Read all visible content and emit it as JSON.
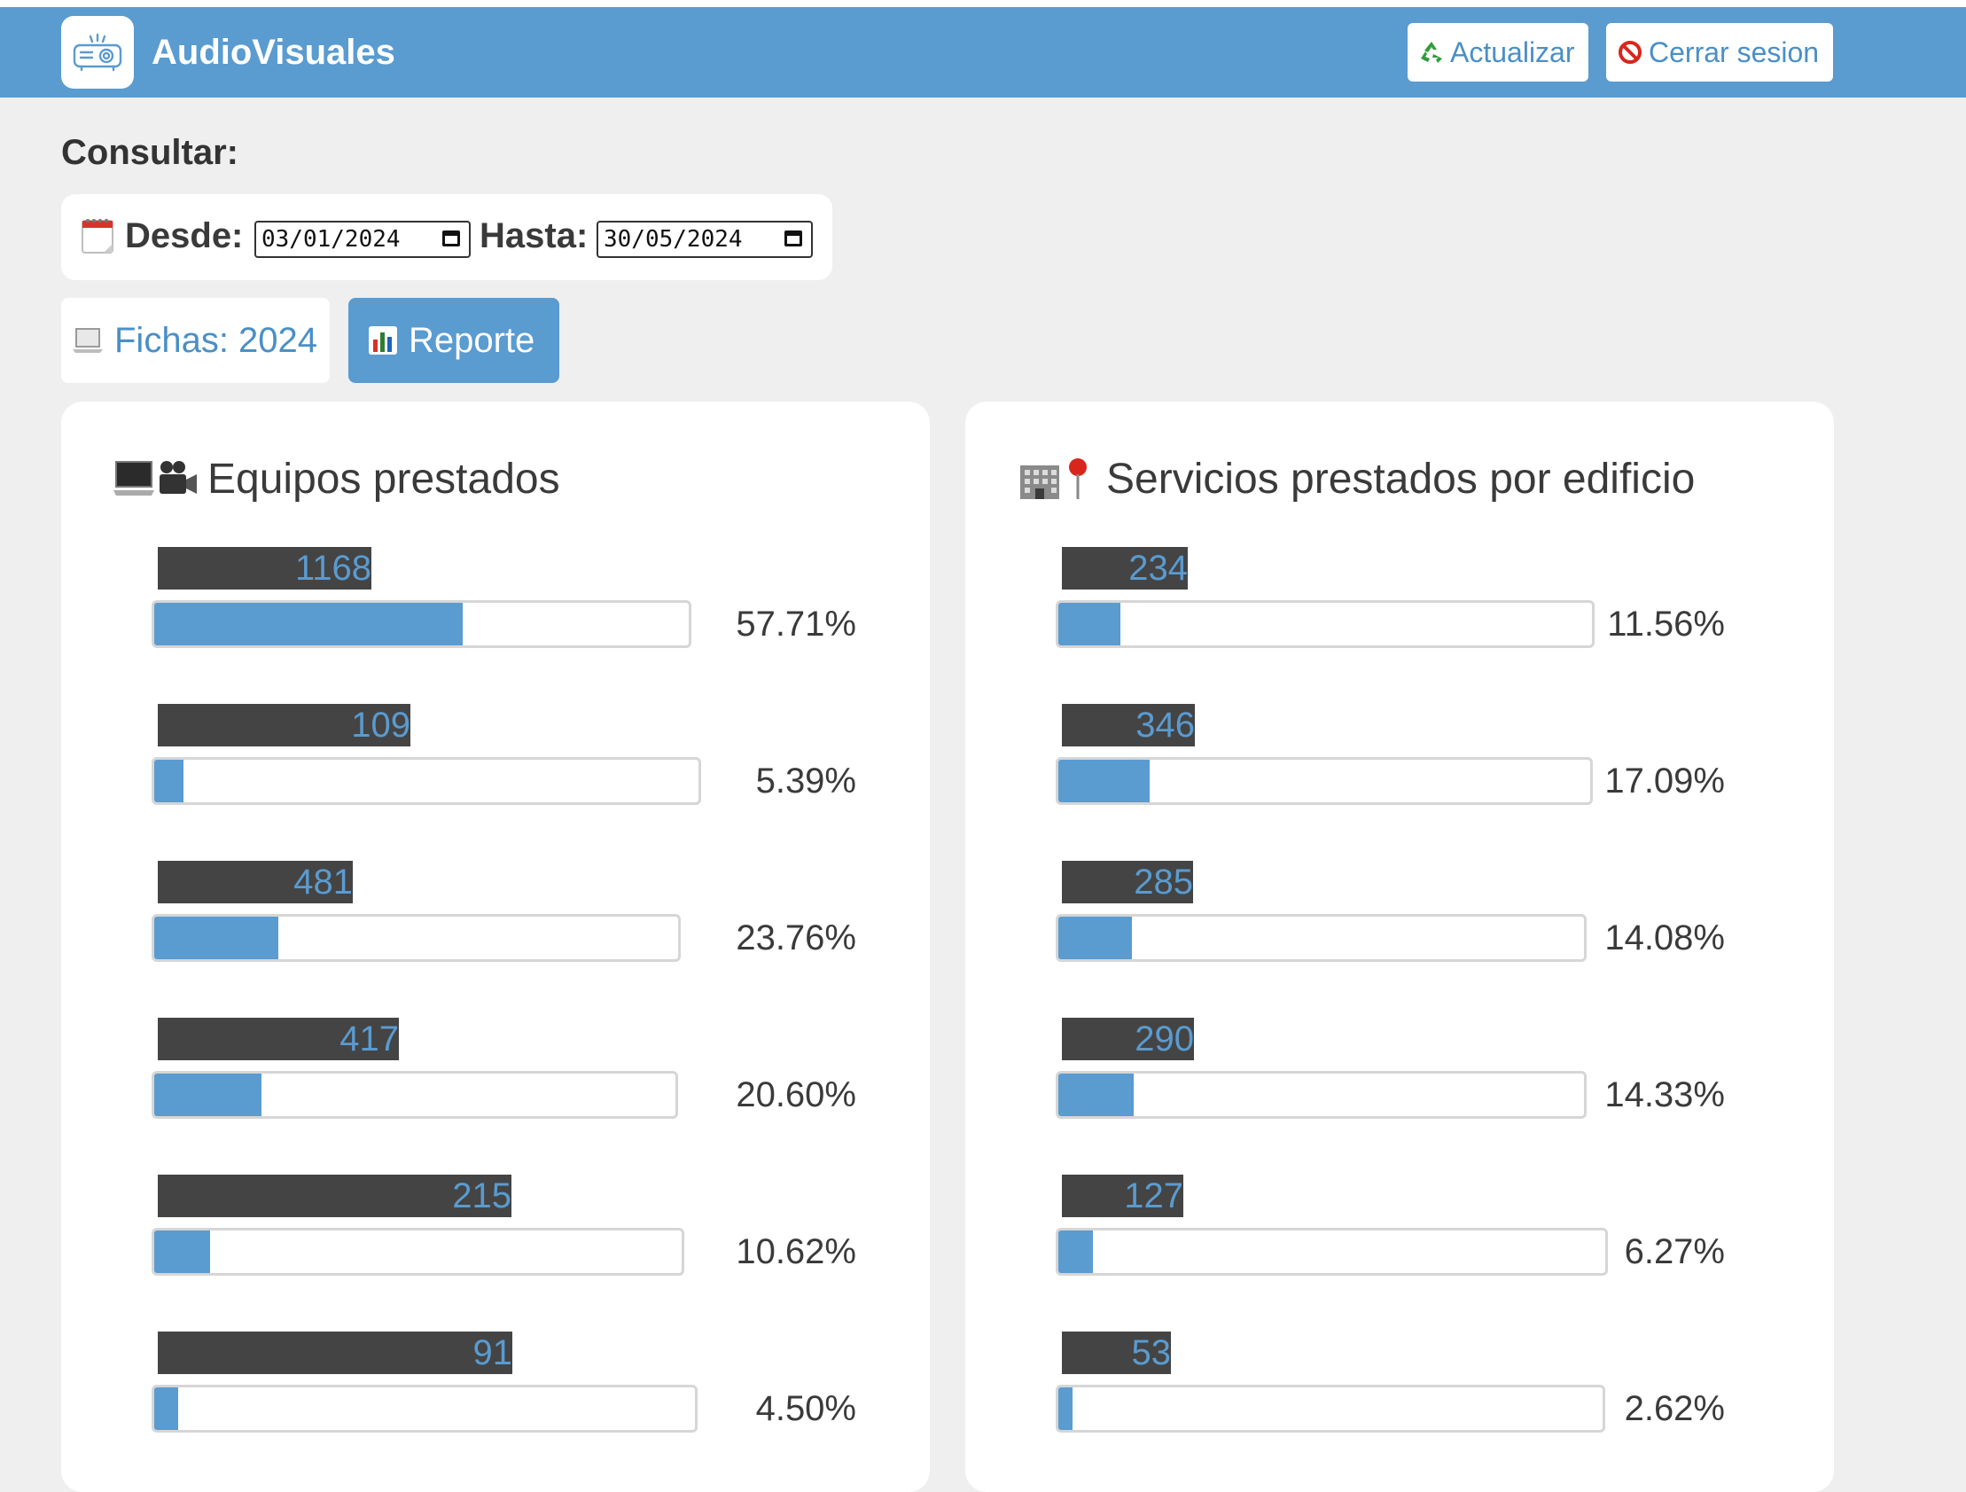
{
  "header": {
    "app_title": "AudioVisuales",
    "refresh_label": "Actualizar",
    "logout_label": "Cerrar sesion",
    "colors": {
      "brand": "#5a9bd0",
      "refresh_icon": "#2e9d3a",
      "logout_icon": "#d9261c"
    }
  },
  "filters": {
    "heading": "Consultar:",
    "from_label": "Desde:",
    "from_value": "03/01/2024",
    "to_label": "Hasta:",
    "to_value": "30/05/2024"
  },
  "actions": {
    "fichas_label": "Fichas: 2024",
    "reporte_label": "Reporte"
  },
  "equipos": {
    "title": "Equipos prestados",
    "items": [
      {
        "count": "1168",
        "percent": "57.71%",
        "fill": 0.5771
      },
      {
        "count": "109",
        "percent": "5.39%",
        "fill": 0.0539
      },
      {
        "count": "481",
        "percent": "23.76%",
        "fill": 0.2376
      },
      {
        "count": "417",
        "percent": "20.60%",
        "fill": 0.206
      },
      {
        "count": "215",
        "percent": "10.62%",
        "fill": 0.1062
      },
      {
        "count": "91",
        "percent": "4.50%",
        "fill": 0.045
      }
    ]
  },
  "servicios": {
    "title": "Servicios prestados por edificio",
    "items": [
      {
        "count": "234",
        "percent": "11.56%",
        "fill": 0.1156
      },
      {
        "count": "346",
        "percent": "17.09%",
        "fill": 0.1709
      },
      {
        "count": "285",
        "percent": "14.08%",
        "fill": 0.1408
      },
      {
        "count": "290",
        "percent": "14.33%",
        "fill": 0.1433
      },
      {
        "count": "127",
        "percent": "6.27%",
        "fill": 0.0627
      },
      {
        "count": "53",
        "percent": "2.62%",
        "fill": 0.0262
      }
    ]
  }
}
